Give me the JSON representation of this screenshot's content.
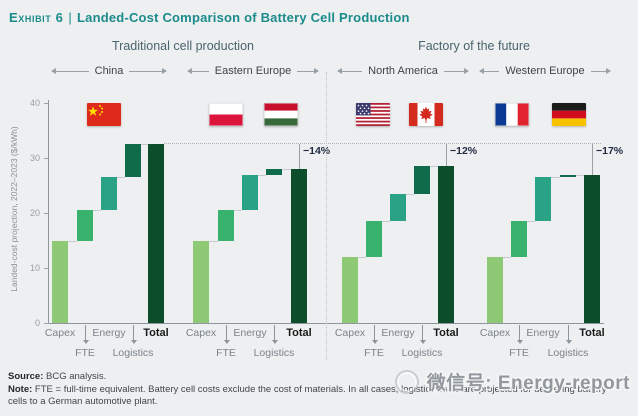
{
  "title": {
    "exhibit": "Exhibit 6",
    "separator": "|",
    "text": "Landed-Cost Comparison of Battery Cell Production"
  },
  "sections": {
    "left": "Traditional cell production",
    "right": "Factory of the future"
  },
  "chart_data": {
    "type": "bar",
    "subtype": "waterfall",
    "title": "Landed-Cost Comparison of Battery Cell Production",
    "ylabel": "Landed-cost projection, 2022–2023 ($/kWh)",
    "ylim": [
      0,
      40
    ],
    "yticks": [
      "0",
      "10",
      "20",
      "30",
      "40"
    ],
    "grid": false,
    "categories": [
      "Capex",
      "FTE",
      "Energy",
      "Logistics",
      "Total"
    ],
    "reference_total": 32.5,
    "groups": [
      {
        "region": "China",
        "section": "Traditional cell production",
        "flags": [
          "china"
        ],
        "capex": 15,
        "fte": 5.5,
        "energy": 6,
        "logistics": 6,
        "total": 32.5,
        "delta": null
      },
      {
        "region": "Eastern Europe",
        "section": "Traditional cell production",
        "flags": [
          "poland",
          "hungary"
        ],
        "capex": 15,
        "fte": 5.5,
        "energy": 6.5,
        "logistics": 1,
        "total": 28,
        "delta": "−14%"
      },
      {
        "region": "North America",
        "section": "Factory of the future",
        "flags": [
          "usa",
          "canada"
        ],
        "capex": 12,
        "fte": 6.5,
        "energy": 5,
        "logistics": 5,
        "total": 28.5,
        "delta": "−12%"
      },
      {
        "region": "Western Europe",
        "section": "Factory of the future",
        "flags": [
          "france",
          "germany"
        ],
        "capex": 12,
        "fte": 6.5,
        "energy": 8,
        "logistics": 0.5,
        "total": 27,
        "delta": "−17%"
      }
    ],
    "colors": {
      "capex": "#8ec975",
      "fte": "#38b26c",
      "energy": "#29a286",
      "logistics": "#106b4b",
      "total": "#0c4d2c",
      "accent_teal": "#1c8b8b",
      "background": "#edeff1"
    }
  },
  "footnotes": {
    "source_label": "Source:",
    "source_text": "BCG analysis.",
    "note_label": "Note:",
    "note_text": "FTE = full-time equivalent. Battery cell costs exclude the cost of materials. In all cases, logistics costs are projected for delivering battery cells to a German automotive plant."
  },
  "watermark": {
    "text": "微信号: Energy-report",
    "icon": "wechat-icon"
  }
}
